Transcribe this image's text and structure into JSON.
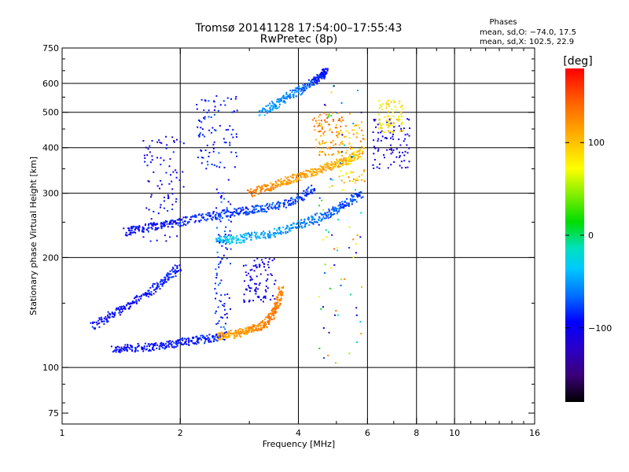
{
  "header": {
    "title_line1": "Tromsø 20141128  17:54:00–17:55:43",
    "title_line2": "RwPretec (8p)"
  },
  "stats": {
    "heading": "Phases",
    "line_o": "mean, sd,O: −74.0, 17.5",
    "line_x": "mean, sd,X: 102.5, 22.9"
  },
  "chart_data": {
    "type": "scatter",
    "xlabel": "Frequency [MHz]",
    "ylabel": "Stationary phase Virtual Height [km]",
    "x_scale": "log",
    "y_scale": "log",
    "xlim": [
      1,
      16
    ],
    "ylim": [
      70,
      750
    ],
    "x_ticks": [
      1,
      2,
      4,
      6,
      8,
      10,
      16
    ],
    "x_tick_labels": [
      "1",
      "2",
      "4",
      "6",
      "8",
      "10",
      "16"
    ],
    "x_gridlines": [
      2,
      4,
      6,
      8,
      10
    ],
    "y_ticks": [
      75,
      100,
      200,
      300,
      400,
      500,
      600,
      750
    ],
    "y_tick_labels": [
      "75",
      "100",
      "200",
      "300",
      "400",
      "500",
      "600",
      "750"
    ],
    "y_gridlines": [
      100,
      200,
      300,
      400,
      500,
      600
    ],
    "grid": true,
    "colorbar": {
      "label": "[deg]",
      "range": [
        -180,
        180
      ],
      "ticks": [
        100,
        0,
        -100
      ],
      "tick_labels": [
        "100",
        "0",
        "−100"
      ],
      "colors": [
        "#000000",
        "#3b0078",
        "#2a00c8",
        "#0000ff",
        "#0070ff",
        "#00c8ff",
        "#00e0c0",
        "#00dd00",
        "#80ee00",
        "#ffff00",
        "#ffb000",
        "#ff6000",
        "#ff0000"
      ]
    },
    "series": [
      {
        "type": "trace",
        "x": [
          1.35,
          1.5,
          1.7,
          1.9,
          2.1,
          2.35,
          2.6
        ],
        "y": [
          112,
          113,
          114,
          116,
          118,
          120,
          122
        ],
        "phase": [
          -95,
          -95,
          -92,
          -92,
          -90,
          -90,
          -88
        ]
      },
      {
        "type": "trace",
        "x": [
          2.5,
          2.7,
          2.9,
          3.1,
          3.3,
          3.45,
          3.55,
          3.62
        ],
        "y": [
          122,
          123,
          125,
          128,
          132,
          140,
          150,
          165
        ],
        "phase": [
          110,
          115,
          120,
          125,
          130,
          135,
          130,
          128
        ]
      },
      {
        "type": "trace",
        "x": [
          1.2,
          1.35,
          1.5,
          1.7,
          1.85,
          2.0
        ],
        "y": [
          130,
          140,
          150,
          163,
          175,
          190
        ],
        "phase": [
          -95,
          -92,
          -100,
          -90,
          -88,
          -92
        ]
      },
      {
        "type": "trace",
        "x": [
          1.45,
          1.6,
          1.8,
          2.0,
          2.3,
          2.6,
          2.9,
          3.2,
          3.6,
          4.0,
          4.4
        ],
        "y": [
          235,
          240,
          245,
          250,
          258,
          264,
          268,
          272,
          278,
          290,
          310
        ],
        "phase": [
          -100,
          -95,
          -90,
          -88,
          -85,
          -80,
          -80,
          -75,
          -78,
          -80,
          -80
        ]
      },
      {
        "type": "trace",
        "x": [
          3.0,
          3.3,
          3.6,
          3.9,
          4.2,
          4.6,
          5.0,
          5.4,
          5.8
        ],
        "y": [
          300,
          310,
          320,
          330,
          340,
          350,
          360,
          370,
          390
        ],
        "phase": [
          130,
          125,
          120,
          118,
          115,
          112,
          108,
          102,
          95
        ]
      },
      {
        "type": "trace",
        "x": [
          3.2,
          3.5,
          3.8,
          4.1,
          4.4,
          4.6,
          4.7
        ],
        "y": [
          500,
          525,
          555,
          580,
          610,
          630,
          650
        ],
        "phase": [
          -50,
          -55,
          -60,
          -70,
          -80,
          -90,
          -100
        ]
      },
      {
        "type": "trace",
        "x": [
          2.5,
          2.7,
          3.0,
          3.4,
          3.8,
          4.2,
          4.6,
          5.0,
          5.4,
          5.8
        ],
        "y": [
          225,
          222,
          228,
          232,
          240,
          250,
          260,
          270,
          285,
          300
        ],
        "phase": [
          -40,
          -30,
          -45,
          -50,
          -55,
          -60,
          -65,
          -70,
          -75,
          -80
        ]
      },
      {
        "type": "cloud",
        "x": [
          2.45,
          2.7
        ],
        "y": [
          125,
          330
        ],
        "phase": [
          -60,
          -120
        ]
      },
      {
        "type": "cloud",
        "x": [
          2.9,
          3.5
        ],
        "y": [
          150,
          200
        ],
        "phase": [
          -90,
          -120
        ]
      },
      {
        "type": "cloud",
        "x": [
          2.2,
          2.8
        ],
        "y": [
          350,
          560
        ],
        "phase": [
          -110,
          -70
        ]
      },
      {
        "type": "cloud",
        "x": [
          1.6,
          2.05
        ],
        "y": [
          220,
          430
        ],
        "phase": [
          -130,
          -80
        ]
      },
      {
        "type": "cloud",
        "x": [
          4.35,
          5.2
        ],
        "y": [
          380,
          500
        ],
        "phase": [
          90,
          150
        ]
      },
      {
        "type": "cloud",
        "x": [
          5.0,
          5.9
        ],
        "y": [
          320,
          470
        ],
        "phase": [
          60,
          140
        ]
      },
      {
        "type": "cloud",
        "x": [
          6.2,
          7.7
        ],
        "y": [
          350,
          480
        ],
        "phase": [
          -130,
          -90
        ]
      },
      {
        "type": "cloud",
        "x": [
          6.4,
          7.4
        ],
        "y": [
          440,
          540
        ],
        "phase": [
          60,
          110
        ]
      },
      {
        "type": "cloud",
        "x": [
          4.5,
          5.8
        ],
        "y": [
          100,
          600
        ],
        "phase": [
          -150,
          150
        ]
      }
    ]
  }
}
